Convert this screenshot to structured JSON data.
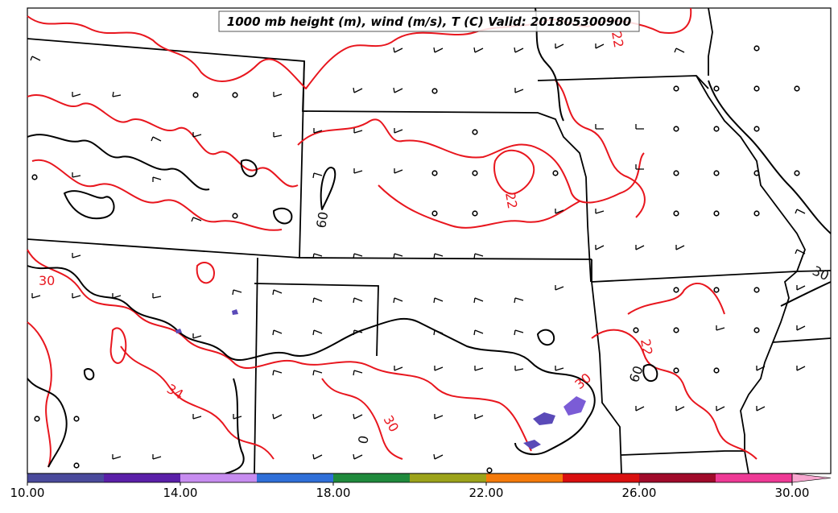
{
  "map": {
    "title": "1000 mb height (m), wind (m/s), T (C) Valid: 201805300900",
    "contour_labels": {
      "temperature": [
        "30",
        "34",
        "30",
        "22",
        "22",
        "30",
        "22"
      ],
      "height": [
        "60",
        "30",
        "60",
        "0"
      ]
    }
  },
  "colorbar": {
    "ticks": [
      "10.00",
      "14.00",
      "18.00",
      "22.00",
      "26.00",
      "30.00"
    ],
    "colors": [
      "#4a4a9c",
      "#5a1fa8",
      "#c78cf0",
      "#2f6fd8",
      "#1f8a3c",
      "#9ca31a",
      "#f47a0a",
      "#d90f0f",
      "#a00a2a",
      "#ee3a95",
      "#f7a6cf"
    ]
  },
  "colors": {
    "temperature_contour": "#e8161e",
    "height_contour": "#000000",
    "shaded_field": "#5a4ab8"
  }
}
